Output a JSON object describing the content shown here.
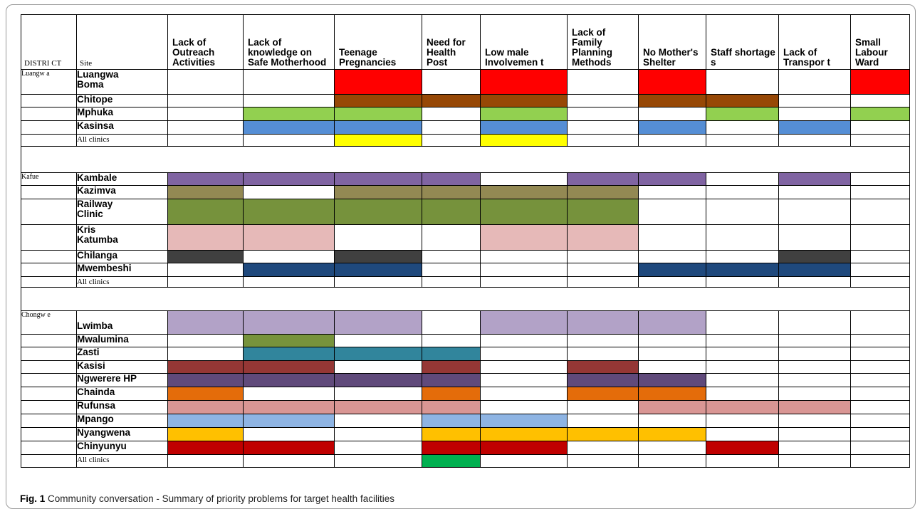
{
  "caption": {
    "label": "Fig. 1",
    "text": "Community conversation - Summary of priority problems for target health facilities"
  },
  "headers": {
    "district": "DISTRI CT",
    "site": "Site",
    "problems": [
      "Lack of Outreach Activities",
      "Lack of knowledge on Safe Motherhood",
      "Teenage Pregnancies",
      "Need for Health Post",
      "Low male Involvemen t",
      "Lack of Family Planning Methods",
      "No Mother's Shelter",
      "Staff shortage s",
      "Lack of Transpor t",
      "Small Labour Ward"
    ]
  },
  "rows": [
    {
      "type": "site",
      "district": "Luangw a",
      "site": "Luangwa\nBoma",
      "color": "#ff0000",
      "flags": [
        0,
        0,
        1,
        0,
        1,
        0,
        1,
        0,
        0,
        1
      ]
    },
    {
      "type": "site",
      "district": "",
      "site": "Chitope",
      "color": "#974806",
      "flags": [
        0,
        0,
        1,
        1,
        1,
        0,
        1,
        1,
        0,
        0
      ]
    },
    {
      "type": "site",
      "district": "",
      "site": "Mphuka",
      "color": "#92d050",
      "flags": [
        0,
        1,
        1,
        0,
        1,
        0,
        0,
        1,
        0,
        1
      ]
    },
    {
      "type": "site",
      "district": "",
      "site": "Kasinsa",
      "color": "#558ed5",
      "flags": [
        0,
        1,
        1,
        0,
        1,
        0,
        1,
        0,
        1,
        0
      ]
    },
    {
      "type": "site",
      "district": "",
      "site": "All clinics",
      "small": true,
      "color": "#ffff00",
      "flags": [
        0,
        0,
        1,
        0,
        1,
        0,
        0,
        0,
        0,
        0
      ]
    },
    {
      "type": "spacer"
    },
    {
      "type": "site",
      "district": "Kafue",
      "site": "Kambale",
      "color": "#8064a2",
      "flags": [
        1,
        1,
        1,
        1,
        0,
        1,
        1,
        0,
        1,
        0
      ]
    },
    {
      "type": "site",
      "district": "",
      "site": "Kazimva",
      "color": "#938953",
      "flags": [
        1,
        0,
        1,
        1,
        1,
        1,
        0,
        0,
        0,
        0
      ]
    },
    {
      "type": "site",
      "district": "",
      "site": "Railway\nClinic",
      "color": "#76923c",
      "flags": [
        1,
        1,
        1,
        1,
        1,
        1,
        0,
        0,
        0,
        0
      ]
    },
    {
      "type": "site",
      "district": "",
      "site": "Kris\nKatumba",
      "color": "#e6b9b8",
      "flags": [
        1,
        1,
        0,
        0,
        1,
        1,
        0,
        0,
        0,
        0
      ]
    },
    {
      "type": "site",
      "district": "",
      "site": "Chilanga",
      "color": "#404040",
      "flags": [
        1,
        0,
        1,
        0,
        0,
        0,
        0,
        0,
        1,
        0
      ]
    },
    {
      "type": "site",
      "district": "",
      "site": "Mwembeshi",
      "color": "#1f497d",
      "flags": [
        0,
        1,
        1,
        0,
        0,
        0,
        1,
        1,
        1,
        0
      ]
    },
    {
      "type": "site",
      "district": "",
      "site": "All clinics",
      "small": true,
      "color": "#ffffff",
      "flags": [
        0,
        0,
        0,
        0,
        0,
        0,
        0,
        0,
        0,
        0
      ]
    },
    {
      "type": "spacer"
    },
    {
      "type": "site",
      "district": "Chongw e",
      "site": "\nLwimba",
      "color": "#b2a2c7",
      "flags": [
        1,
        1,
        1,
        0,
        1,
        1,
        1,
        0,
        0,
        0
      ]
    },
    {
      "type": "site",
      "district": "",
      "site": "Mwalumina",
      "color": "#77933c",
      "flags": [
        0,
        1,
        0,
        0,
        0,
        0,
        0,
        0,
        0,
        0
      ]
    },
    {
      "type": "site",
      "district": "",
      "site": "Zasti",
      "color": "#31859c",
      "flags": [
        0,
        1,
        1,
        1,
        0,
        0,
        0,
        0,
        0,
        0
      ]
    },
    {
      "type": "site",
      "district": "",
      "site": "Kasisi",
      "color": "#953735",
      "flags": [
        1,
        1,
        0,
        1,
        0,
        1,
        0,
        0,
        0,
        0
      ]
    },
    {
      "type": "site",
      "district": "",
      "site": "Ngwerere HP",
      "color": "#604a7b",
      "flags": [
        1,
        1,
        1,
        1,
        0,
        1,
        1,
        0,
        0,
        0
      ]
    },
    {
      "type": "site",
      "district": "",
      "site": "Chainda",
      "color": "#e46c0a",
      "flags": [
        1,
        0,
        0,
        1,
        0,
        1,
        1,
        0,
        0,
        0
      ]
    },
    {
      "type": "site",
      "district": "",
      "site": "Rufunsa",
      "color": "#d99694",
      "flags": [
        1,
        1,
        1,
        1,
        0,
        0,
        1,
        1,
        1,
        0
      ]
    },
    {
      "type": "site",
      "district": "",
      "site": "Mpango",
      "color": "#8eb4e3",
      "flags": [
        1,
        1,
        0,
        1,
        1,
        0,
        0,
        0,
        0,
        0
      ]
    },
    {
      "type": "site",
      "district": "",
      "site": "Nyangwena",
      "color": "#ffc000",
      "flags": [
        1,
        0,
        0,
        1,
        1,
        1,
        1,
        0,
        0,
        0
      ]
    },
    {
      "type": "site",
      "district": "",
      "site": "Chinyunyu",
      "color": "#c00000",
      "flags": [
        1,
        1,
        0,
        1,
        1,
        0,
        0,
        1,
        0,
        0
      ]
    },
    {
      "type": "site",
      "district": "",
      "site": "All clinics",
      "small": true,
      "color": "#00b050",
      "flags": [
        0,
        0,
        0,
        1,
        0,
        0,
        0,
        0,
        0,
        0
      ]
    }
  ]
}
